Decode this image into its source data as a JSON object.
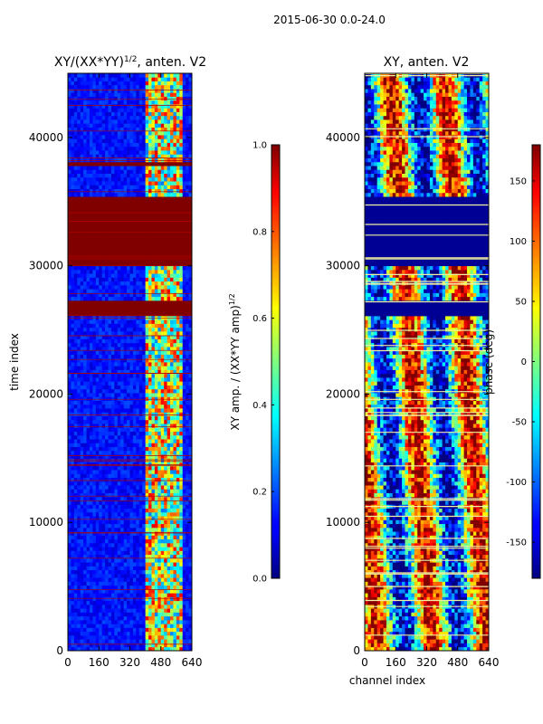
{
  "figure_title": "2015-06-30 0.0-24.0",
  "chart_data": [
    {
      "type": "heatmap",
      "title": "XY/(XX*YY)^{1/2}, anten. V2",
      "title_main": "XY/(XX*YY)",
      "title_exp": "1/2",
      "title_tail": ", anten. V2",
      "xlabel": "",
      "ylabel": "time index",
      "xlim": [
        0,
        640
      ],
      "ylim": [
        0,
        45000
      ],
      "xticks": [
        0,
        160,
        320,
        480,
        640
      ],
      "yticks": [
        0,
        10000,
        20000,
        30000,
        40000
      ],
      "colorbar": {
        "label": "XY amp. / (XX*YY amp)^{1/2}",
        "label_main": "XY amp. / (XX*YY amp)",
        "label_exp": "1/2",
        "range": [
          0.0,
          1.0
        ],
        "ticks": [
          "0.0",
          "0.2",
          "0.4",
          "0.6",
          "0.8",
          "1.0"
        ],
        "tick_values": [
          0.0,
          0.2,
          0.4,
          0.6,
          0.8,
          1.0
        ]
      },
      "saturated_bands": [
        {
          "from": 26000,
          "to": 27200,
          "value": 1.0
        },
        {
          "from": 30100,
          "to": 35300,
          "value": 1.0
        },
        {
          "from": 37700,
          "to": 38100,
          "value": 1.0
        }
      ],
      "bright_channels": [
        {
          "from": 400,
          "to": 590,
          "value": 0.6
        }
      ],
      "background_value": 0.08
    },
    {
      "type": "heatmap",
      "title": "XY, anten. V2",
      "xlabel": "channel index",
      "ylabel": "",
      "xlim": [
        0,
        640
      ],
      "ylim": [
        0,
        45000
      ],
      "xticks": [
        0,
        160,
        320,
        480,
        640
      ],
      "yticks": [
        0,
        10000,
        20000,
        30000,
        40000
      ],
      "colorbar": {
        "label": "phase (deg)",
        "range": [
          -180,
          180
        ],
        "ticks": [
          "-150",
          "-100",
          "-50",
          "0",
          "50",
          "100",
          "150"
        ],
        "tick_values": [
          -150,
          -100,
          -50,
          0,
          50,
          100,
          150
        ]
      },
      "flat_bands": [
        {
          "from": 26000,
          "to": 27200,
          "value": -180
        },
        {
          "from": 30100,
          "to": 35300,
          "value": -180
        }
      ]
    }
  ]
}
